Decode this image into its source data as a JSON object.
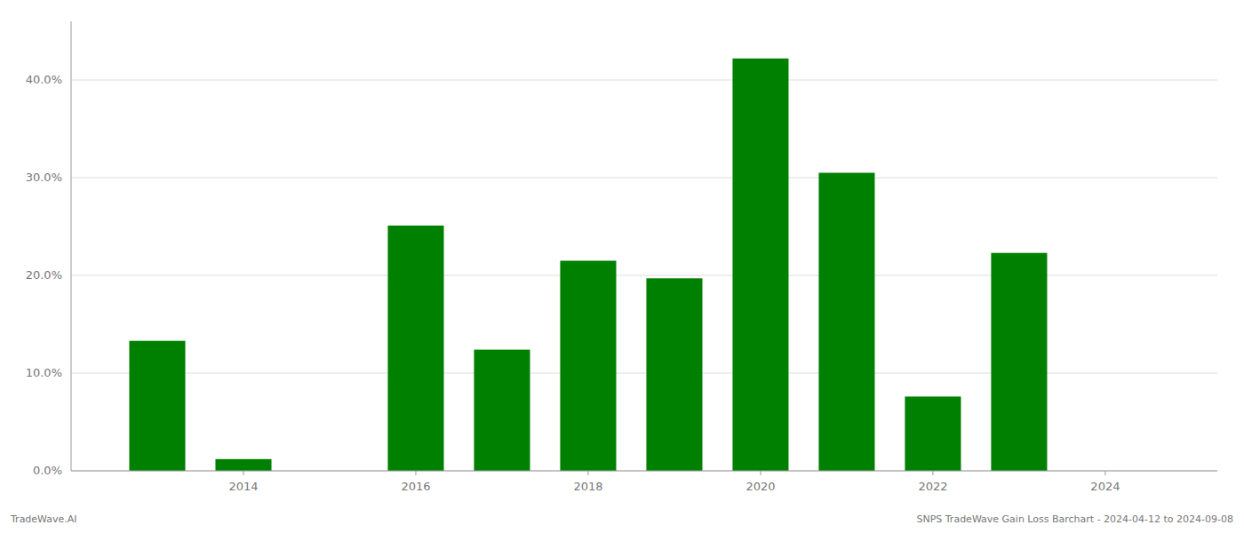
{
  "chart_data": {
    "type": "bar",
    "x": [
      2013,
      2014,
      2016,
      2017,
      2018,
      2019,
      2020,
      2021,
      2022,
      2023
    ],
    "values": [
      0.133,
      0.012,
      0.251,
      0.124,
      0.215,
      0.197,
      0.422,
      0.305,
      0.076,
      0.223
    ],
    "color": "#008000",
    "xlim": [
      2012.0,
      2025.3
    ],
    "xticks": [
      2014,
      2016,
      2018,
      2020,
      2022,
      2024
    ],
    "ylim": [
      0,
      0.46
    ],
    "yticks": [
      {
        "value": 0.0,
        "label": "0.0%"
      },
      {
        "value": 0.1,
        "label": "10.0%"
      },
      {
        "value": 0.2,
        "label": "20.0%"
      },
      {
        "value": 0.3,
        "label": "30.0%"
      },
      {
        "value": 0.4,
        "label": "40.0%"
      }
    ],
    "grid": true,
    "annotations": [
      "TradeWave.AI",
      "SNPS TradeWave Gain Loss Barchart - 2024-04-12 to 2024-09-08"
    ]
  }
}
